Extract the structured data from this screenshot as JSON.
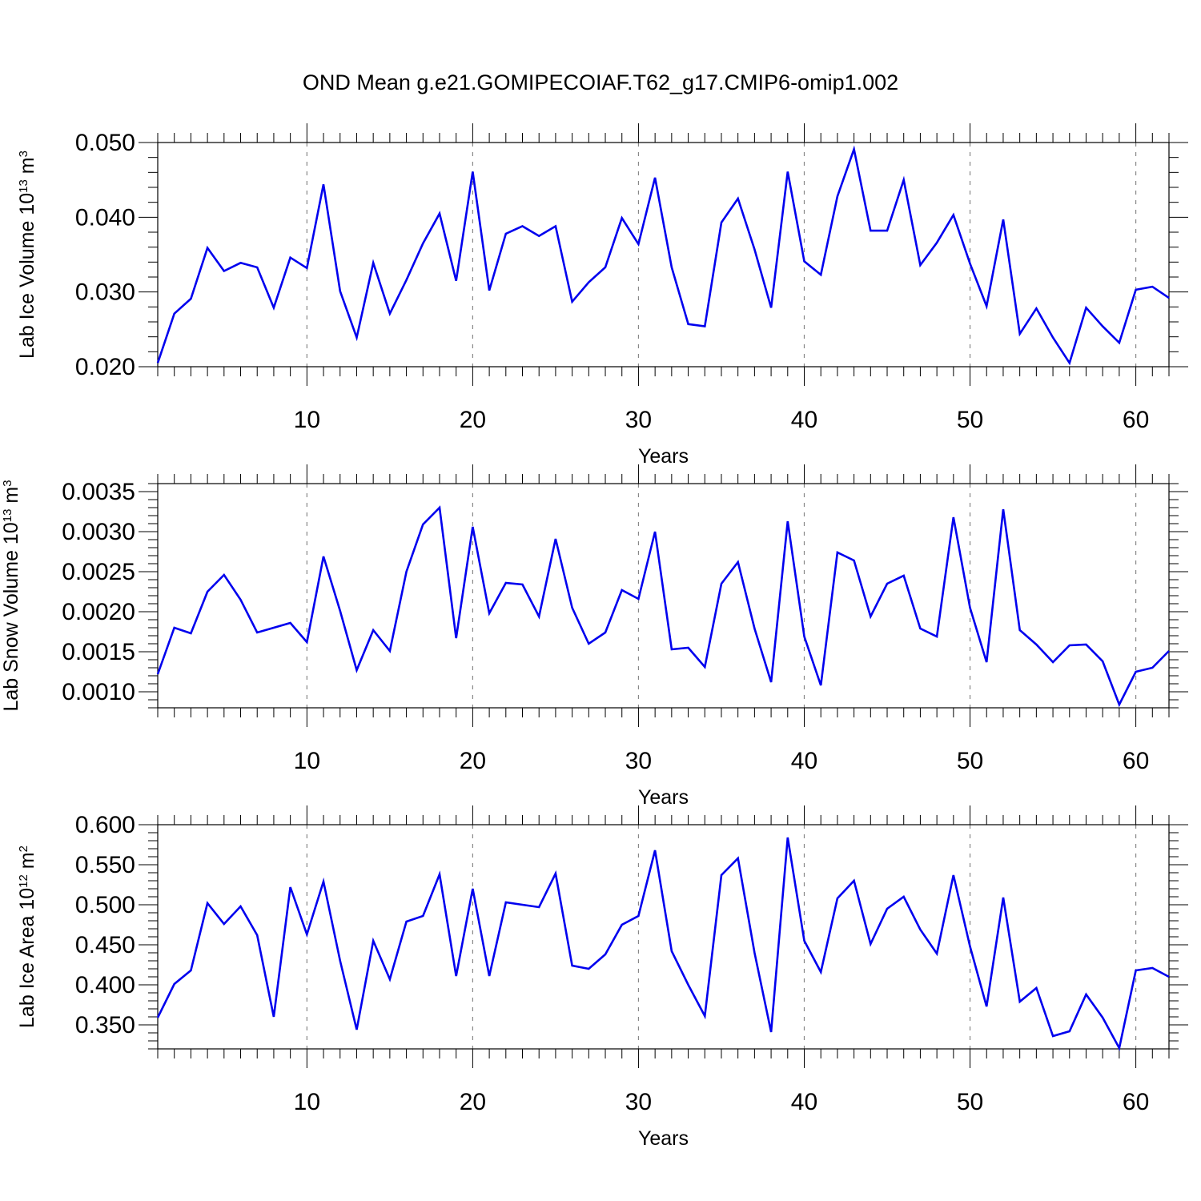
{
  "title": "OND Mean g.e21.GOMIPECOIAF.T62_g17.CMIP6-omip1.002",
  "colors": {
    "line": "#0000ee",
    "axis": "#000000",
    "grid": "#888888"
  },
  "chart_data": [
    {
      "type": "line",
      "title": "OND Mean g.e21.GOMIPECOIAF.T62_g17.CMIP6-omip1.002",
      "xlabel": "Years",
      "ylabel": "Lab Ice Volume 10",
      "ylabel_exp": "13",
      "ylabel_unit": " m",
      "ylabel_unit_exp": "3",
      "xlim": [
        1,
        62
      ],
      "ylim": [
        0.02,
        0.05
      ],
      "xticks": [
        10,
        20,
        30,
        40,
        50,
        60
      ],
      "xtick_labels": [
        "10",
        "20",
        "30",
        "40",
        "50",
        "60"
      ],
      "yticks": [
        0.02,
        0.03,
        0.04,
        0.05
      ],
      "ytick_labels": [
        "0.020",
        "0.030",
        "0.040",
        "0.050"
      ],
      "grid": "vertical dashed at x ticks",
      "x": [
        1,
        2,
        3,
        4,
        5,
        6,
        7,
        8,
        9,
        10,
        11,
        12,
        13,
        14,
        15,
        16,
        17,
        18,
        19,
        20,
        21,
        22,
        23,
        24,
        25,
        26,
        27,
        28,
        29,
        30,
        31,
        32,
        33,
        34,
        35,
        36,
        37,
        38,
        39,
        40,
        41,
        42,
        43,
        44,
        45,
        46,
        47,
        48,
        49,
        50,
        51,
        52,
        53,
        54,
        55,
        56,
        57,
        58,
        59,
        60,
        61,
        62
      ],
      "values": [
        0.0205,
        0.0271,
        0.0291,
        0.0359,
        0.0328,
        0.0339,
        0.0333,
        0.0279,
        0.0346,
        0.0332,
        0.0444,
        0.0301,
        0.0239,
        0.0339,
        0.0271,
        0.0316,
        0.0365,
        0.0405,
        0.0315,
        0.0461,
        0.0302,
        0.0378,
        0.0388,
        0.0375,
        0.0388,
        0.0287,
        0.0313,
        0.0333,
        0.0399,
        0.0364,
        0.0453,
        0.0333,
        0.0257,
        0.0254,
        0.0393,
        0.0425,
        0.0357,
        0.0279,
        0.0461,
        0.0341,
        0.0323,
        0.0428,
        0.0491,
        0.0382,
        0.0382,
        0.045,
        0.0336,
        0.0366,
        0.0403,
        0.0338,
        0.0281,
        0.0397,
        0.0244,
        0.0278,
        0.0239,
        0.0205,
        0.0279,
        0.0254,
        0.0232,
        0.0303,
        0.0307,
        0.0292
      ]
    },
    {
      "type": "line",
      "xlabel": "Years",
      "ylabel": "Lab Snow Volume 10",
      "ylabel_exp": "13",
      "ylabel_unit": " m",
      "ylabel_unit_exp": "3",
      "xlim": [
        1,
        62
      ],
      "ylim": [
        0.0008,
        0.0036
      ],
      "xticks": [
        10,
        20,
        30,
        40,
        50,
        60
      ],
      "xtick_labels": [
        "10",
        "20",
        "30",
        "40",
        "50",
        "60"
      ],
      "yticks": [
        0.001,
        0.0015,
        0.002,
        0.0025,
        0.003,
        0.0035
      ],
      "ytick_labels": [
        "0.0010",
        "0.0015",
        "0.0020",
        "0.0025",
        "0.0030",
        "0.0035"
      ],
      "grid": "vertical dashed at x ticks",
      "x": [
        1,
        2,
        3,
        4,
        5,
        6,
        7,
        8,
        9,
        10,
        11,
        12,
        13,
        14,
        15,
        16,
        17,
        18,
        19,
        20,
        21,
        22,
        23,
        24,
        25,
        26,
        27,
        28,
        29,
        30,
        31,
        32,
        33,
        34,
        35,
        36,
        37,
        38,
        39,
        40,
        41,
        42,
        43,
        44,
        45,
        46,
        47,
        48,
        49,
        50,
        51,
        52,
        53,
        54,
        55,
        56,
        57,
        58,
        59,
        60,
        61,
        62
      ],
      "values": [
        0.00122,
        0.0018,
        0.00173,
        0.00225,
        0.00246,
        0.00215,
        0.00174,
        0.0018,
        0.00186,
        0.00162,
        0.00269,
        0.00201,
        0.00127,
        0.00177,
        0.00151,
        0.0025,
        0.00309,
        0.0033,
        0.00167,
        0.00306,
        0.00198,
        0.00236,
        0.00234,
        0.00194,
        0.00291,
        0.00205,
        0.0016,
        0.00174,
        0.00227,
        0.00216,
        0.003,
        0.00153,
        0.00155,
        0.00131,
        0.00235,
        0.00262,
        0.00179,
        0.00112,
        0.00313,
        0.00169,
        0.00108,
        0.00274,
        0.00264,
        0.00194,
        0.00235,
        0.00245,
        0.00179,
        0.00169,
        0.00318,
        0.00205,
        0.00137,
        0.00328,
        0.00177,
        0.00159,
        0.00137,
        0.00158,
        0.00159,
        0.00138,
        0.00084,
        0.00125,
        0.0013,
        0.00151
      ]
    },
    {
      "type": "line",
      "xlabel": "Years",
      "ylabel": "Lab Ice Area 10",
      "ylabel_exp": "12",
      "ylabel_unit": " m",
      "ylabel_unit_exp": "2",
      "xlim": [
        1,
        62
      ],
      "ylim": [
        0.32,
        0.6
      ],
      "xticks": [
        10,
        20,
        30,
        40,
        50,
        60
      ],
      "xtick_labels": [
        "10",
        "20",
        "30",
        "40",
        "50",
        "60"
      ],
      "yticks": [
        0.35,
        0.4,
        0.45,
        0.5,
        0.55,
        0.6
      ],
      "ytick_labels": [
        "0.350",
        "0.400",
        "0.450",
        "0.500",
        "0.550",
        "0.600"
      ],
      "grid": "vertical dashed at x ticks",
      "x": [
        1,
        2,
        3,
        4,
        5,
        6,
        7,
        8,
        9,
        10,
        11,
        12,
        13,
        14,
        15,
        16,
        17,
        18,
        19,
        20,
        21,
        22,
        23,
        24,
        25,
        26,
        27,
        28,
        29,
        30,
        31,
        32,
        33,
        34,
        35,
        36,
        37,
        38,
        39,
        40,
        41,
        42,
        43,
        44,
        45,
        46,
        47,
        48,
        49,
        50,
        51,
        52,
        53,
        54,
        55,
        56,
        57,
        58,
        59,
        60,
        61,
        62
      ],
      "values": [
        0.359,
        0.401,
        0.418,
        0.502,
        0.476,
        0.498,
        0.462,
        0.36,
        0.522,
        0.463,
        0.529,
        0.43,
        0.344,
        0.455,
        0.407,
        0.479,
        0.486,
        0.538,
        0.411,
        0.52,
        0.411,
        0.503,
        0.5,
        0.497,
        0.539,
        0.424,
        0.42,
        0.438,
        0.475,
        0.486,
        0.568,
        0.442,
        0.4,
        0.361,
        0.537,
        0.558,
        0.44,
        0.341,
        0.584,
        0.455,
        0.416,
        0.508,
        0.53,
        0.451,
        0.495,
        0.51,
        0.469,
        0.439,
        0.537,
        0.448,
        0.373,
        0.509,
        0.379,
        0.396,
        0.336,
        0.342,
        0.388,
        0.359,
        0.321,
        0.418,
        0.421,
        0.41
      ]
    }
  ]
}
